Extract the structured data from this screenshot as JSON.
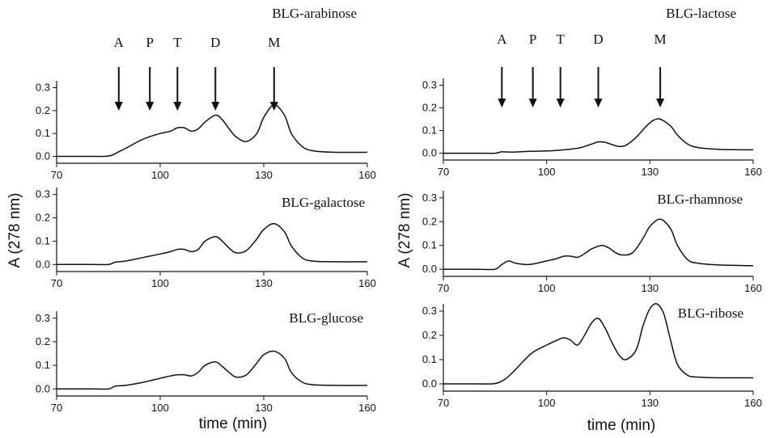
{
  "chart_data": [
    {
      "type": "line",
      "title": "BLG-arabinose",
      "xlim": [
        70,
        160
      ],
      "ylim": [
        -0.03,
        0.33
      ],
      "xticks": [
        70,
        100,
        130,
        160
      ],
      "yticks": [
        "0.0",
        "0.1",
        "0.2",
        "0.3"
      ],
      "markers": [
        {
          "label": "A",
          "x": 88
        },
        {
          "label": "P",
          "x": 97
        },
        {
          "label": "T",
          "x": 105
        },
        {
          "label": "D",
          "x": 116
        },
        {
          "label": "M",
          "x": 133
        }
      ],
      "x": [
        70,
        80,
        84,
        86,
        88,
        90,
        95,
        100,
        103,
        105,
        107,
        109,
        111,
        113,
        116,
        118,
        120,
        122,
        125,
        128,
        130,
        133,
        136,
        138,
        141,
        144,
        150,
        160
      ],
      "y": [
        0.0,
        0.0,
        0.0,
        0.005,
        0.02,
        0.035,
        0.075,
        0.1,
        0.11,
        0.125,
        0.125,
        0.11,
        0.12,
        0.15,
        0.18,
        0.16,
        0.12,
        0.085,
        0.065,
        0.1,
        0.17,
        0.225,
        0.18,
        0.1,
        0.045,
        0.025,
        0.018,
        0.018
      ]
    },
    {
      "type": "line",
      "title": "BLG-galactose",
      "xlim": [
        70,
        160
      ],
      "ylim": [
        -0.03,
        0.33
      ],
      "xticks": [
        70,
        100,
        130,
        160
      ],
      "yticks": [
        "0.0",
        "0.1",
        "0.2",
        "0.3"
      ],
      "x": [
        70,
        80,
        85,
        87,
        90,
        95,
        100,
        103,
        105,
        107,
        109,
        111,
        113,
        116,
        118,
        120,
        122,
        125,
        128,
        130,
        133,
        136,
        138,
        141,
        144,
        150,
        160
      ],
      "y": [
        0.0,
        0.0,
        0.0,
        0.01,
        0.015,
        0.03,
        0.045,
        0.055,
        0.065,
        0.065,
        0.055,
        0.065,
        0.1,
        0.12,
        0.1,
        0.07,
        0.05,
        0.06,
        0.11,
        0.15,
        0.175,
        0.14,
        0.08,
        0.03,
        0.015,
        0.012,
        0.012
      ]
    },
    {
      "type": "line",
      "title": "BLG-glucose",
      "xlim": [
        70,
        160
      ],
      "ylim": [
        -0.03,
        0.33
      ],
      "xticks": [
        70,
        100,
        130,
        160
      ],
      "yticks": [
        "0.0",
        "0.1",
        "0.2",
        "0.3"
      ],
      "x": [
        70,
        80,
        85,
        87,
        90,
        95,
        100,
        103,
        105,
        107,
        109,
        111,
        113,
        116,
        118,
        120,
        122,
        125,
        128,
        130,
        133,
        136,
        138,
        141,
        144,
        150,
        160
      ],
      "y": [
        0.0,
        0.0,
        0.0,
        0.012,
        0.015,
        0.028,
        0.045,
        0.055,
        0.06,
        0.06,
        0.055,
        0.07,
        0.1,
        0.115,
        0.095,
        0.07,
        0.05,
        0.06,
        0.11,
        0.145,
        0.16,
        0.13,
        0.07,
        0.03,
        0.018,
        0.015,
        0.015
      ]
    },
    {
      "type": "line",
      "title": "BLG-lactose",
      "xlim": [
        70,
        160
      ],
      "ylim": [
        -0.03,
        0.33
      ],
      "xticks": [
        70,
        100,
        130,
        160
      ],
      "yticks": [
        "0.0",
        "0.1",
        "0.2",
        "0.3"
      ],
      "markers": [
        {
          "label": "A",
          "x": 87
        },
        {
          "label": "P",
          "x": 96
        },
        {
          "label": "T",
          "x": 104
        },
        {
          "label": "D",
          "x": 115
        },
        {
          "label": "M",
          "x": 133
        }
      ],
      "x": [
        70,
        80,
        85,
        87,
        90,
        95,
        100,
        105,
        108,
        110,
        113,
        115,
        117,
        119,
        121,
        123,
        126,
        129,
        131,
        133,
        136,
        138,
        141,
        144,
        150,
        160
      ],
      "y": [
        0.0,
        0.0,
        0.0,
        0.006,
        0.005,
        0.008,
        0.01,
        0.015,
        0.02,
        0.025,
        0.04,
        0.05,
        0.048,
        0.038,
        0.03,
        0.035,
        0.07,
        0.12,
        0.145,
        0.15,
        0.12,
        0.08,
        0.04,
        0.025,
        0.017,
        0.015
      ]
    },
    {
      "type": "line",
      "title": "BLG-rhamnose",
      "xlim": [
        70,
        160
      ],
      "ylim": [
        -0.03,
        0.33
      ],
      "xticks": [
        70,
        100,
        130,
        160
      ],
      "yticks": [
        "0.0",
        "0.1",
        "0.2",
        "0.3"
      ],
      "x": [
        70,
        80,
        85,
        87,
        89,
        91,
        95,
        100,
        103,
        105,
        107,
        109,
        111,
        113,
        116,
        118,
        120,
        122,
        125,
        128,
        130,
        133,
        136,
        138,
        141,
        144,
        150,
        160
      ],
      "y": [
        0.0,
        0.0,
        0.0,
        0.02,
        0.035,
        0.025,
        0.02,
        0.035,
        0.045,
        0.055,
        0.055,
        0.05,
        0.065,
        0.085,
        0.1,
        0.09,
        0.07,
        0.06,
        0.07,
        0.13,
        0.18,
        0.21,
        0.17,
        0.1,
        0.04,
        0.025,
        0.018,
        0.015
      ]
    },
    {
      "type": "line",
      "title": "BLG-ribose",
      "xlim": [
        70,
        160
      ],
      "ylim": [
        -0.03,
        0.33
      ],
      "xticks": [
        70,
        100,
        130,
        160
      ],
      "yticks": [
        "0.0",
        "0.1",
        "0.2",
        "0.3"
      ],
      "x": [
        70,
        80,
        84,
        86,
        88,
        90,
        93,
        96,
        100,
        103,
        105,
        107,
        109,
        111,
        113,
        115,
        117,
        119,
        121,
        123,
        126,
        128,
        130,
        132,
        134,
        136,
        138,
        141,
        144,
        150,
        160
      ],
      "y": [
        0.0,
        0.0,
        0.0,
        0.005,
        0.02,
        0.045,
        0.09,
        0.13,
        0.16,
        0.18,
        0.19,
        0.18,
        0.16,
        0.2,
        0.25,
        0.27,
        0.23,
        0.17,
        0.12,
        0.1,
        0.14,
        0.24,
        0.31,
        0.33,
        0.29,
        0.18,
        0.08,
        0.035,
        0.028,
        0.025,
        0.025
      ]
    }
  ],
  "axis_titles": {
    "ylabel_left": "A (278 nm)",
    "ylabel_right": "A (278 nm)",
    "xlabel_left": "time (min)",
    "xlabel_right": "time (min)"
  }
}
